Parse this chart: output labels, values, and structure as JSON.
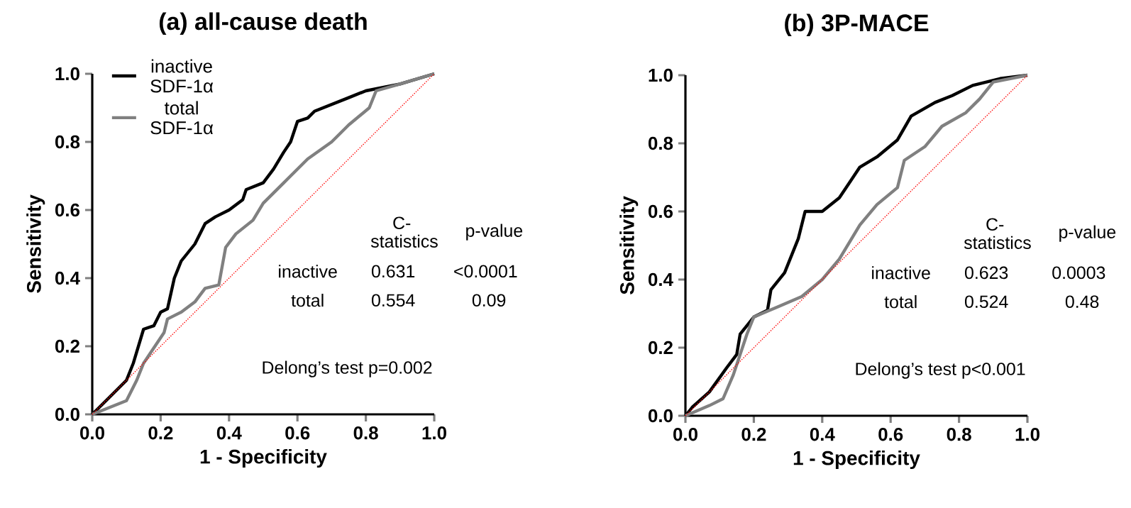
{
  "chart_data": [
    {
      "type": "line",
      "title": "(a) all-cause death",
      "xlabel": "1 - Specificity",
      "ylabel": "Sensitivity",
      "xlim": [
        0,
        1
      ],
      "ylim": [
        0,
        1
      ],
      "xticks": [
        {
          "value": 0,
          "label": "0.0"
        },
        {
          "value": 0.2,
          "label": "0.2"
        },
        {
          "value": 0.4,
          "label": "0.4"
        },
        {
          "value": 0.6,
          "label": "0.6"
        },
        {
          "value": 0.8,
          "label": "0.8"
        },
        {
          "value": 1,
          "label": "1.0"
        }
      ],
      "yticks": [
        {
          "value": 0,
          "label": "0.0"
        },
        {
          "value": 0.2,
          "label": "0.2"
        },
        {
          "value": 0.4,
          "label": "0.4"
        },
        {
          "value": 0.6,
          "label": "0.6"
        },
        {
          "value": 0.8,
          "label": "0.8"
        },
        {
          "value": 1,
          "label": "1.0"
        }
      ],
      "legend": "top left",
      "series": [
        {
          "name": "inactive SDF-1α",
          "color": "#000000",
          "x": [
            0,
            0.06,
            0.1,
            0.12,
            0.15,
            0.18,
            0.2,
            0.22,
            0.24,
            0.26,
            0.3,
            0.33,
            0.36,
            0.4,
            0.44,
            0.45,
            0.5,
            0.53,
            0.56,
            0.58,
            0.6,
            0.63,
            0.65,
            0.7,
            0.75,
            0.8,
            0.9,
            1
          ],
          "values": [
            0,
            0.06,
            0.1,
            0.15,
            0.25,
            0.26,
            0.3,
            0.31,
            0.4,
            0.45,
            0.5,
            0.56,
            0.58,
            0.6,
            0.63,
            0.66,
            0.68,
            0.72,
            0.77,
            0.8,
            0.86,
            0.87,
            0.89,
            0.91,
            0.93,
            0.95,
            0.97,
            1
          ]
        },
        {
          "name": "total SDF-1α",
          "color": "#808080",
          "x": [
            0,
            0.05,
            0.1,
            0.13,
            0.15,
            0.21,
            0.22,
            0.26,
            0.3,
            0.33,
            0.37,
            0.39,
            0.42,
            0.47,
            0.5,
            0.56,
            0.63,
            0.7,
            0.75,
            0.81,
            0.83,
            0.9,
            1
          ],
          "values": [
            0,
            0.02,
            0.04,
            0.1,
            0.15,
            0.24,
            0.28,
            0.3,
            0.33,
            0.37,
            0.38,
            0.49,
            0.53,
            0.57,
            0.62,
            0.68,
            0.75,
            0.8,
            0.85,
            0.9,
            0.95,
            0.97,
            1
          ]
        },
        {
          "color": "#ff0000",
          "line_style": "dotted",
          "x": [
            0,
            1
          ],
          "values": [
            0,
            1
          ]
        }
      ],
      "annotations": [
        "C-statistics",
        "p-value",
        "inactive",
        "0.631",
        "<0.0001",
        "total",
        "0.554",
        "0.09",
        "Delong’s test p=0.002"
      ]
    },
    {
      "type": "line",
      "title": "(b) 3P-MACE",
      "xlabel": "1 - Specificity",
      "ylabel": "Sensitivity",
      "xlim": [
        0,
        1
      ],
      "ylim": [
        0,
        1
      ],
      "xticks": [
        {
          "value": 0,
          "label": "0.0"
        },
        {
          "value": 0.2,
          "label": "0.2"
        },
        {
          "value": 0.4,
          "label": "0.4"
        },
        {
          "value": 0.6,
          "label": "0.6"
        },
        {
          "value": 0.8,
          "label": "0.8"
        },
        {
          "value": 1,
          "label": "1.0"
        }
      ],
      "yticks": [
        {
          "value": 0,
          "label": "0.0"
        },
        {
          "value": 0.2,
          "label": "0.2"
        },
        {
          "value": 0.4,
          "label": "0.4"
        },
        {
          "value": 0.6,
          "label": "0.6"
        },
        {
          "value": 0.8,
          "label": "0.8"
        },
        {
          "value": 1,
          "label": "1.0"
        }
      ],
      "series": [
        {
          "color": "#000000",
          "x": [
            0,
            0.02,
            0.07,
            0.12,
            0.15,
            0.16,
            0.2,
            0.24,
            0.25,
            0.29,
            0.33,
            0.35,
            0.4,
            0.45,
            0.51,
            0.56,
            0.62,
            0.66,
            0.73,
            0.78,
            0.84,
            0.92,
            1
          ],
          "values": [
            0,
            0.025,
            0.07,
            0.14,
            0.18,
            0.24,
            0.29,
            0.31,
            0.37,
            0.42,
            0.52,
            0.6,
            0.6,
            0.64,
            0.73,
            0.76,
            0.81,
            0.88,
            0.92,
            0.94,
            0.97,
            0.99,
            1
          ]
        },
        {
          "color": "#808080",
          "x": [
            0,
            0.07,
            0.11,
            0.14,
            0.18,
            0.2,
            0.27,
            0.34,
            0.4,
            0.45,
            0.51,
            0.56,
            0.62,
            0.64,
            0.7,
            0.75,
            0.82,
            0.86,
            0.9,
            1
          ],
          "values": [
            0,
            0.03,
            0.05,
            0.12,
            0.24,
            0.29,
            0.32,
            0.35,
            0.4,
            0.46,
            0.56,
            0.62,
            0.67,
            0.75,
            0.79,
            0.85,
            0.89,
            0.93,
            0.98,
            1
          ]
        },
        {
          "color": "#ff0000",
          "line_style": "dotted",
          "x": [
            0,
            1
          ],
          "values": [
            0,
            1
          ]
        }
      ],
      "annotations": [
        "C-statistics",
        "p-value",
        "inactive",
        "0.623",
        "0.0003",
        "total",
        "0.524",
        "0.48",
        "Delong’s test p<0.001"
      ]
    }
  ]
}
